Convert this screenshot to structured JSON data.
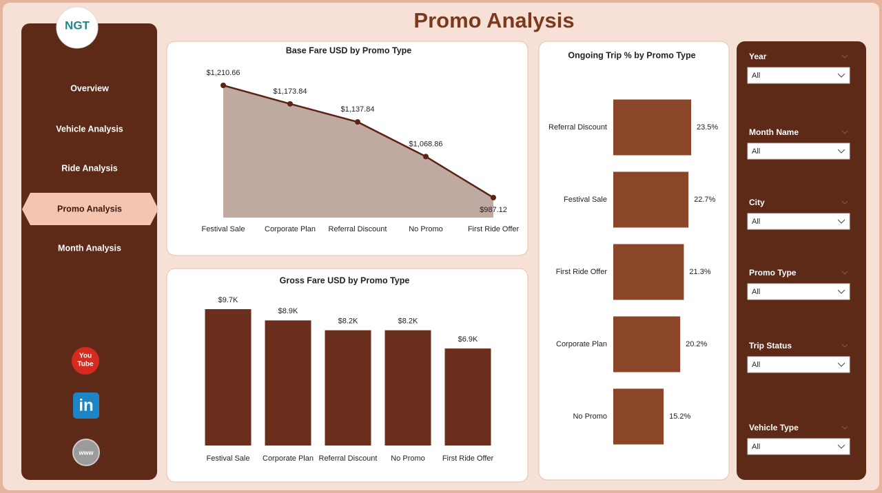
{
  "header": {
    "title": "Promo Analysis",
    "logo": "NGT"
  },
  "nav": {
    "items": [
      "Overview",
      "Vehicle Analysis",
      "Ride Analysis",
      "Promo Analysis",
      "Month Analysis"
    ],
    "active": 3
  },
  "social": {
    "youtube": [
      "You",
      "Tube"
    ],
    "linkedin": "in",
    "web": "www"
  },
  "filters": [
    {
      "label": "Year",
      "value": "All"
    },
    {
      "label": "Month Name",
      "value": "All"
    },
    {
      "label": "City",
      "value": "All"
    },
    {
      "label": "Promo Type",
      "value": "All"
    },
    {
      "label": "Trip Status",
      "value": "All"
    },
    {
      "label": "Vehicle Type",
      "value": "All"
    }
  ],
  "charts": [
    {
      "type": "area",
      "title": "Base Fare USD by Promo Type",
      "categories": [
        "Festival Sale",
        "Corporate Plan",
        "Referral Discount",
        "No Promo",
        "First Ride Offer"
      ],
      "values": [
        1210.66,
        1173.84,
        1137.84,
        1068.86,
        987.12
      ],
      "value_labels": [
        "$1,210.66",
        "$1,173.84",
        "$1,137.84",
        "$1,068.86",
        "$987.12"
      ],
      "color": "#5c2414",
      "fill": "#bfaaa2"
    },
    {
      "type": "bar",
      "title": "Gross Fare USD by Promo Type",
      "categories": [
        "Festival Sale",
        "Corporate Plan",
        "Referral Discount",
        "No Promo",
        "First Ride Offer"
      ],
      "values": [
        9700,
        8900,
        8200,
        8200,
        6900
      ],
      "value_labels": [
        "$9.7K",
        "$8.9K",
        "$8.2K",
        "$8.2K",
        "$6.9K"
      ],
      "color": "#6b2f1e"
    },
    {
      "type": "hbar",
      "title": "Ongoing Trip % by Promo Type",
      "categories": [
        "Referral Discount",
        "Festival Sale",
        "First Ride Offer",
        "Corporate Plan",
        "No Promo"
      ],
      "values": [
        23.5,
        22.7,
        21.3,
        20.2,
        15.2
      ],
      "value_labels": [
        "23.5%",
        "22.7%",
        "21.3%",
        "20.2%",
        "15.2%"
      ],
      "color": "#8b4528"
    }
  ]
}
